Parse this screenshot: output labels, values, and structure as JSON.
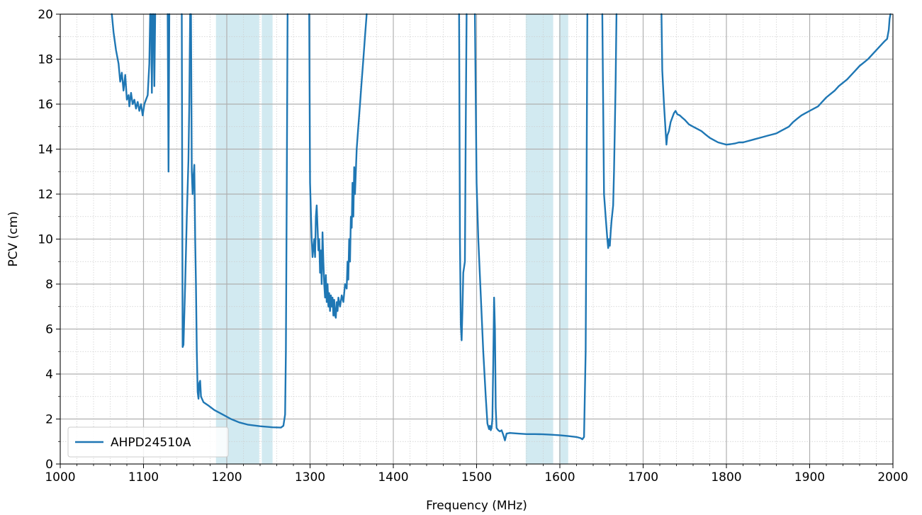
{
  "chart_data": {
    "type": "line",
    "title": "",
    "xlabel": "Frequency (MHz)",
    "ylabel": "PCV (cm)",
    "xlim": [
      1000,
      2000
    ],
    "ylim": [
      0,
      20
    ],
    "x_major_ticks": [
      1000,
      1100,
      1200,
      1300,
      1400,
      1500,
      1600,
      1700,
      1800,
      1900,
      2000
    ],
    "y_major_ticks": [
      0,
      2,
      4,
      6,
      8,
      10,
      12,
      14,
      16,
      18,
      20
    ],
    "x_minor_step": 20,
    "y_minor_step": 1,
    "grid": true,
    "legend": {
      "position": "lower-left",
      "entries": [
        "AHPD24510A"
      ]
    },
    "colors": {
      "series": "#1f77b4",
      "band": "#add8e6"
    },
    "shaded_bands": [
      [
        1187,
        1239
      ],
      [
        1242,
        1255
      ],
      [
        1559,
        1592
      ],
      [
        1599,
        1610
      ]
    ],
    "series": [
      {
        "name": "AHPD24510A",
        "segments": [
          [
            [
              1062,
              20
            ],
            [
              1064,
              19.2
            ],
            [
              1067,
              18.4
            ],
            [
              1070,
              17.8
            ],
            [
              1072,
              17.0
            ],
            [
              1074,
              17.4
            ],
            [
              1076,
              16.6
            ],
            [
              1078,
              17.3
            ],
            [
              1080,
              16.2
            ],
            [
              1082,
              16.4
            ],
            [
              1083,
              15.9
            ],
            [
              1085,
              16.5
            ],
            [
              1087,
              16.0
            ],
            [
              1089,
              16.2
            ],
            [
              1091,
              15.8
            ],
            [
              1093,
              16.1
            ],
            [
              1095,
              15.7
            ],
            [
              1097,
              16.0
            ],
            [
              1099,
              15.5
            ],
            [
              1101,
              16.0
            ],
            [
              1103,
              16.2
            ],
            [
              1105,
              16.4
            ],
            [
              1107,
              17.8
            ],
            [
              1108,
              20
            ]
          ],
          [
            [
              1109,
              20
            ],
            [
              1110,
              16.5
            ],
            [
              1111,
              20
            ]
          ],
          [
            [
              1112,
              20
            ],
            [
              1113,
              16.8
            ],
            [
              1114,
              20
            ]
          ],
          [
            [
              1129,
              20
            ],
            [
              1130,
              13.0
            ],
            [
              1131,
              20
            ]
          ],
          [
            [
              1146,
              20
            ],
            [
              1147,
              5.2
            ],
            [
              1148,
              5.3
            ],
            [
              1150,
              8.0
            ],
            [
              1152,
              11.0
            ],
            [
              1154,
              13.5
            ],
            [
              1155,
              16.0
            ],
            [
              1156,
              20
            ]
          ],
          [
            [
              1157,
              20
            ],
            [
              1158,
              13.0
            ],
            [
              1159,
              12.0
            ],
            [
              1160,
              12.8
            ],
            [
              1161,
              13.3
            ],
            [
              1162,
              10.0
            ],
            [
              1163,
              8.0
            ],
            [
              1164,
              5.0
            ],
            [
              1165,
              3.2
            ],
            [
              1166,
              2.9
            ],
            [
              1167,
              3.6
            ],
            [
              1168,
              3.7
            ],
            [
              1169,
              3.0
            ],
            [
              1172,
              2.75
            ],
            [
              1178,
              2.6
            ],
            [
              1185,
              2.4
            ],
            [
              1195,
              2.2
            ],
            [
              1205,
              2.0
            ],
            [
              1215,
              1.85
            ],
            [
              1225,
              1.75
            ],
            [
              1240,
              1.68
            ],
            [
              1255,
              1.63
            ],
            [
              1265,
              1.62
            ],
            [
              1268,
              1.7
            ],
            [
              1270,
              2.2
            ],
            [
              1271,
              5.0
            ],
            [
              1272,
              12.0
            ],
            [
              1273,
              20
            ]
          ],
          [
            [
              1299,
              20
            ],
            [
              1300,
              12.5
            ],
            [
              1302,
              10.0
            ],
            [
              1303,
              9.2
            ],
            [
              1304,
              9.6
            ],
            [
              1305,
              10.0
            ],
            [
              1306,
              9.2
            ],
            [
              1307,
              11.0
            ],
            [
              1308,
              11.5
            ],
            [
              1309,
              10.5
            ],
            [
              1310,
              9.5
            ],
            [
              1311,
              10.0
            ],
            [
              1312,
              8.5
            ],
            [
              1313,
              9.5
            ],
            [
              1314,
              8.0
            ],
            [
              1315,
              10.3
            ],
            [
              1316,
              9.0
            ],
            [
              1317,
              8.0
            ],
            [
              1318,
              7.4
            ],
            [
              1319,
              8.4
            ],
            [
              1320,
              7.2
            ],
            [
              1321,
              8.0
            ],
            [
              1322,
              7.0
            ],
            [
              1323,
              7.6
            ],
            [
              1324,
              6.8
            ],
            [
              1325,
              7.5
            ],
            [
              1326,
              7.0
            ],
            [
              1327,
              7.4
            ],
            [
              1328,
              6.6
            ],
            [
              1329,
              7.3
            ],
            [
              1330,
              6.6
            ],
            [
              1331,
              6.5
            ],
            [
              1332,
              7.2
            ],
            [
              1333,
              6.8
            ],
            [
              1334,
              7.4
            ],
            [
              1336,
              7.0
            ],
            [
              1338,
              7.5
            ],
            [
              1340,
              7.2
            ],
            [
              1342,
              8.0
            ],
            [
              1344,
              7.8
            ],
            [
              1345,
              9.0
            ],
            [
              1346,
              8.2
            ],
            [
              1347,
              10.0
            ],
            [
              1348,
              9.0
            ],
            [
              1349,
              11.0
            ],
            [
              1350,
              10.5
            ],
            [
              1351,
              12.5
            ],
            [
              1352,
              11.0
            ],
            [
              1353,
              13.2
            ],
            [
              1354,
              12.0
            ],
            [
              1356,
              14.0
            ],
            [
              1358,
              15.0
            ],
            [
              1360,
              16.0
            ],
            [
              1362,
              17.0
            ],
            [
              1364,
              18.0
            ],
            [
              1366,
              19.0
            ],
            [
              1368,
              20
            ]
          ],
          [
            [
              1479,
              20
            ],
            [
              1480,
              10.0
            ],
            [
              1481,
              6.2
            ],
            [
              1482,
              5.5
            ],
            [
              1483,
              6.8
            ],
            [
              1484,
              8.5
            ],
            [
              1486,
              9.0
            ],
            [
              1487,
              15.0
            ],
            [
              1488,
              20
            ]
          ],
          [
            [
              1498,
              20
            ],
            [
              1500,
              12.5
            ],
            [
              1502,
              10.0
            ],
            [
              1505,
              7.5
            ],
            [
              1508,
              5.0
            ],
            [
              1511,
              3.0
            ],
            [
              1513,
              1.8
            ],
            [
              1515,
              1.55
            ],
            [
              1516,
              1.7
            ],
            [
              1517,
              1.5
            ],
            [
              1518,
              1.6
            ],
            [
              1519,
              2.0
            ],
            [
              1520,
              4.5
            ],
            [
              1521,
              7.4
            ],
            [
              1522,
              6.0
            ],
            [
              1523,
              2.5
            ],
            [
              1524,
              1.6
            ],
            [
              1526,
              1.5
            ],
            [
              1528,
              1.45
            ],
            [
              1530,
              1.5
            ],
            [
              1532,
              1.3
            ],
            [
              1534,
              1.05
            ],
            [
              1536,
              1.35
            ],
            [
              1540,
              1.38
            ],
            [
              1550,
              1.35
            ],
            [
              1560,
              1.33
            ],
            [
              1570,
              1.33
            ],
            [
              1580,
              1.32
            ],
            [
              1590,
              1.3
            ],
            [
              1600,
              1.28
            ],
            [
              1610,
              1.24
            ],
            [
              1620,
              1.2
            ],
            [
              1625,
              1.15
            ],
            [
              1627,
              1.1
            ],
            [
              1629,
              1.2
            ],
            [
              1631,
              5.0
            ],
            [
              1632,
              12.0
            ],
            [
              1633,
              20
            ]
          ],
          [
            [
              1651,
              20
            ],
            [
              1653,
              12.0
            ],
            [
              1655,
              11.0
            ],
            [
              1657,
              10.0
            ],
            [
              1658,
              9.6
            ],
            [
              1659,
              10.0
            ],
            [
              1660,
              9.7
            ],
            [
              1661,
              10.3
            ],
            [
              1662,
              10.8
            ],
            [
              1664,
              11.5
            ],
            [
              1665,
              13.0
            ],
            [
              1666,
              15.0
            ],
            [
              1667,
              17.0
            ],
            [
              1668,
              20
            ]
          ],
          [
            [
              1722,
              20
            ],
            [
              1723,
              17.5
            ],
            [
              1725,
              16.0
            ],
            [
              1727,
              14.8
            ],
            [
              1728,
              14.2
            ],
            [
              1729,
              14.6
            ],
            [
              1731,
              14.8
            ],
            [
              1733,
              15.2
            ],
            [
              1735,
              15.4
            ],
            [
              1737,
              15.6
            ],
            [
              1739,
              15.7
            ],
            [
              1741,
              15.55
            ],
            [
              1744,
              15.5
            ],
            [
              1747,
              15.4
            ],
            [
              1750,
              15.3
            ],
            [
              1755,
              15.1
            ],
            [
              1760,
              15.0
            ],
            [
              1765,
              14.9
            ],
            [
              1770,
              14.8
            ],
            [
              1775,
              14.65
            ],
            [
              1780,
              14.5
            ],
            [
              1785,
              14.4
            ],
            [
              1790,
              14.3
            ],
            [
              1795,
              14.25
            ],
            [
              1800,
              14.2
            ],
            [
              1805,
              14.22
            ],
            [
              1810,
              14.25
            ],
            [
              1815,
              14.3
            ],
            [
              1820,
              14.3
            ],
            [
              1825,
              14.35
            ],
            [
              1830,
              14.4
            ],
            [
              1835,
              14.45
            ],
            [
              1840,
              14.5
            ],
            [
              1845,
              14.55
            ],
            [
              1850,
              14.6
            ],
            [
              1855,
              14.65
            ],
            [
              1860,
              14.7
            ],
            [
              1865,
              14.8
            ],
            [
              1870,
              14.9
            ],
            [
              1875,
              15.0
            ],
            [
              1880,
              15.2
            ],
            [
              1885,
              15.35
            ],
            [
              1890,
              15.5
            ],
            [
              1895,
              15.6
            ],
            [
              1900,
              15.7
            ],
            [
              1905,
              15.8
            ],
            [
              1910,
              15.9
            ],
            [
              1915,
              16.1
            ],
            [
              1920,
              16.3
            ],
            [
              1925,
              16.45
            ],
            [
              1930,
              16.6
            ],
            [
              1935,
              16.8
            ],
            [
              1940,
              16.95
            ],
            [
              1945,
              17.1
            ],
            [
              1950,
              17.3
            ],
            [
              1955,
              17.5
            ],
            [
              1960,
              17.7
            ],
            [
              1965,
              17.85
            ],
            [
              1970,
              18.0
            ],
            [
              1975,
              18.2
            ],
            [
              1980,
              18.4
            ],
            [
              1985,
              18.6
            ],
            [
              1990,
              18.8
            ],
            [
              1993,
              18.9
            ],
            [
              1995,
              19.3
            ],
            [
              1996,
              19.8
            ],
            [
              1997,
              20
            ]
          ]
        ]
      }
    ]
  }
}
